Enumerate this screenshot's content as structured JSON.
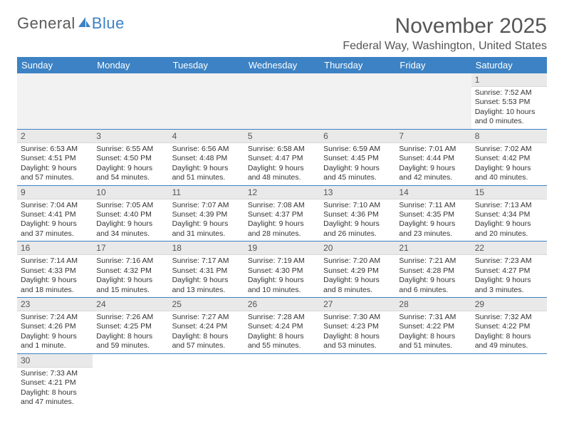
{
  "brand": {
    "part1": "General",
    "part2": "Blue",
    "sail_color": "#3c82c4",
    "text_color": "#5a5a5a"
  },
  "title": "November 2025",
  "location": "Federal Way, Washington, United States",
  "colors": {
    "header_bg": "#3c82c4",
    "header_fg": "#ffffff",
    "daynum_bg": "#e9e9e9",
    "row_border": "#3c82c4",
    "empty_bg": "#f2f2f2",
    "body_text": "#333333",
    "title_text": "#555555"
  },
  "day_headers": [
    "Sunday",
    "Monday",
    "Tuesday",
    "Wednesday",
    "Thursday",
    "Friday",
    "Saturday"
  ],
  "weeks": [
    [
      null,
      null,
      null,
      null,
      null,
      null,
      {
        "n": "1",
        "sunrise": "7:52 AM",
        "sunset": "5:53 PM",
        "day_h": "10",
        "day_m": "0 minutes"
      }
    ],
    [
      {
        "n": "2",
        "sunrise": "6:53 AM",
        "sunset": "4:51 PM",
        "day_h": "9",
        "day_m": "57 minutes"
      },
      {
        "n": "3",
        "sunrise": "6:55 AM",
        "sunset": "4:50 PM",
        "day_h": "9",
        "day_m": "54 minutes"
      },
      {
        "n": "4",
        "sunrise": "6:56 AM",
        "sunset": "4:48 PM",
        "day_h": "9",
        "day_m": "51 minutes"
      },
      {
        "n": "5",
        "sunrise": "6:58 AM",
        "sunset": "4:47 PM",
        "day_h": "9",
        "day_m": "48 minutes"
      },
      {
        "n": "6",
        "sunrise": "6:59 AM",
        "sunset": "4:45 PM",
        "day_h": "9",
        "day_m": "45 minutes"
      },
      {
        "n": "7",
        "sunrise": "7:01 AM",
        "sunset": "4:44 PM",
        "day_h": "9",
        "day_m": "42 minutes"
      },
      {
        "n": "8",
        "sunrise": "7:02 AM",
        "sunset": "4:42 PM",
        "day_h": "9",
        "day_m": "40 minutes"
      }
    ],
    [
      {
        "n": "9",
        "sunrise": "7:04 AM",
        "sunset": "4:41 PM",
        "day_h": "9",
        "day_m": "37 minutes"
      },
      {
        "n": "10",
        "sunrise": "7:05 AM",
        "sunset": "4:40 PM",
        "day_h": "9",
        "day_m": "34 minutes"
      },
      {
        "n": "11",
        "sunrise": "7:07 AM",
        "sunset": "4:39 PM",
        "day_h": "9",
        "day_m": "31 minutes"
      },
      {
        "n": "12",
        "sunrise": "7:08 AM",
        "sunset": "4:37 PM",
        "day_h": "9",
        "day_m": "28 minutes"
      },
      {
        "n": "13",
        "sunrise": "7:10 AM",
        "sunset": "4:36 PM",
        "day_h": "9",
        "day_m": "26 minutes"
      },
      {
        "n": "14",
        "sunrise": "7:11 AM",
        "sunset": "4:35 PM",
        "day_h": "9",
        "day_m": "23 minutes"
      },
      {
        "n": "15",
        "sunrise": "7:13 AM",
        "sunset": "4:34 PM",
        "day_h": "9",
        "day_m": "20 minutes"
      }
    ],
    [
      {
        "n": "16",
        "sunrise": "7:14 AM",
        "sunset": "4:33 PM",
        "day_h": "9",
        "day_m": "18 minutes"
      },
      {
        "n": "17",
        "sunrise": "7:16 AM",
        "sunset": "4:32 PM",
        "day_h": "9",
        "day_m": "15 minutes"
      },
      {
        "n": "18",
        "sunrise": "7:17 AM",
        "sunset": "4:31 PM",
        "day_h": "9",
        "day_m": "13 minutes"
      },
      {
        "n": "19",
        "sunrise": "7:19 AM",
        "sunset": "4:30 PM",
        "day_h": "9",
        "day_m": "10 minutes"
      },
      {
        "n": "20",
        "sunrise": "7:20 AM",
        "sunset": "4:29 PM",
        "day_h": "9",
        "day_m": "8 minutes"
      },
      {
        "n": "21",
        "sunrise": "7:21 AM",
        "sunset": "4:28 PM",
        "day_h": "9",
        "day_m": "6 minutes"
      },
      {
        "n": "22",
        "sunrise": "7:23 AM",
        "sunset": "4:27 PM",
        "day_h": "9",
        "day_m": "3 minutes"
      }
    ],
    [
      {
        "n": "23",
        "sunrise": "7:24 AM",
        "sunset": "4:26 PM",
        "day_h": "9",
        "day_m": "1 minute"
      },
      {
        "n": "24",
        "sunrise": "7:26 AM",
        "sunset": "4:25 PM",
        "day_h": "8",
        "day_m": "59 minutes"
      },
      {
        "n": "25",
        "sunrise": "7:27 AM",
        "sunset": "4:24 PM",
        "day_h": "8",
        "day_m": "57 minutes"
      },
      {
        "n": "26",
        "sunrise": "7:28 AM",
        "sunset": "4:24 PM",
        "day_h": "8",
        "day_m": "55 minutes"
      },
      {
        "n": "27",
        "sunrise": "7:30 AM",
        "sunset": "4:23 PM",
        "day_h": "8",
        "day_m": "53 minutes"
      },
      {
        "n": "28",
        "sunrise": "7:31 AM",
        "sunset": "4:22 PM",
        "day_h": "8",
        "day_m": "51 minutes"
      },
      {
        "n": "29",
        "sunrise": "7:32 AM",
        "sunset": "4:22 PM",
        "day_h": "8",
        "day_m": "49 minutes"
      }
    ],
    [
      {
        "n": "30",
        "sunrise": "7:33 AM",
        "sunset": "4:21 PM",
        "day_h": "8",
        "day_m": "47 minutes"
      },
      null,
      null,
      null,
      null,
      null,
      null
    ]
  ],
  "labels": {
    "sunrise": "Sunrise:",
    "sunset": "Sunset:",
    "daylight": "Daylight:",
    "hours_word": "hours",
    "and_word": "and"
  }
}
